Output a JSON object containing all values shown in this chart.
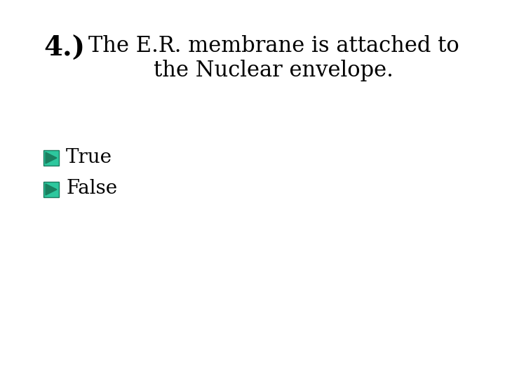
{
  "background_color": "#ffffff",
  "title_number": "4.)",
  "title_line1": "The E.R. membrane is attached to",
  "title_line2": "the Nuclear envelope.",
  "options": [
    "True",
    "False"
  ],
  "icon_color": "#2dc89e",
  "icon_border_color": "#1a7a5e",
  "triangle_color": "#1a8060",
  "text_color": "#000000",
  "title_fontsize": 22,
  "option_fontsize": 20,
  "number_fontsize": 28
}
